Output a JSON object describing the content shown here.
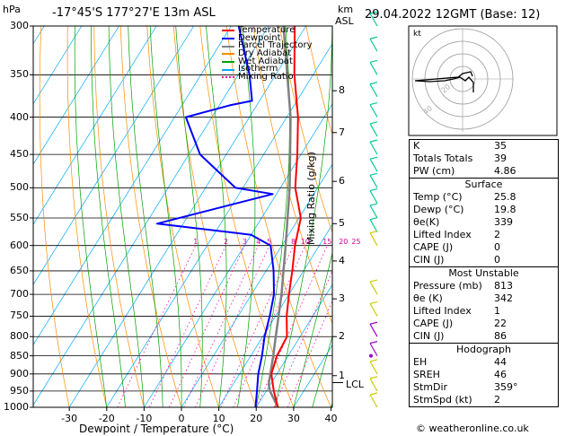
{
  "header": {
    "pressure_unit": "hPa",
    "location": "-17°45'S  177°27'E  13m  ASL",
    "km_unit": "km",
    "asl_unit": "ASL",
    "datetime": "29.04.2022  12GMT  (Base: 12)"
  },
  "legend": [
    {
      "label": "Temperature",
      "color": "#ff0000",
      "style": "solid"
    },
    {
      "label": "Dewpoint",
      "color": "#0000ff",
      "style": "solid"
    },
    {
      "label": "Parcel Trajectory",
      "color": "#808080",
      "style": "solid"
    },
    {
      "label": "Dry Adiabat",
      "color": "#ff8c00",
      "style": "solid"
    },
    {
      "label": "Wet Adiabat",
      "color": "#00a000",
      "style": "solid"
    },
    {
      "label": "Isotherm",
      "color": "#00aaff",
      "style": "solid"
    },
    {
      "label": "Mixing Ratio",
      "color": "#ff00aa",
      "style": "dotted"
    }
  ],
  "pressure_ticks": [
    "300",
    "350",
    "400",
    "450",
    "500",
    "550",
    "600",
    "650",
    "700",
    "750",
    "800",
    "850",
    "900",
    "950",
    "1000"
  ],
  "x_ticks": [
    "-30",
    "-20",
    "-10",
    "0",
    "10",
    "20",
    "30",
    "40"
  ],
  "xlabel": "Dewpoint / Temperature (°C)",
  "ylabel_right": "Mixing Ratio (g/kg)",
  "km_ticks": [
    "8",
    "7",
    "6",
    "5",
    "4",
    "3",
    "2",
    "1"
  ],
  "lcl_label": "LCL",
  "mixing_ratio_labels": [
    "1",
    "2",
    "3",
    "4",
    "5",
    "8",
    "10",
    "15",
    "20",
    "25"
  ],
  "hodograph": {
    "unit_label": "kt",
    "ring_labels": [
      "20",
      "40"
    ]
  },
  "indices": [
    {
      "label": "K",
      "value": "35"
    },
    {
      "label": "Totals Totals",
      "value": "39"
    },
    {
      "label": "PW (cm)",
      "value": "4.86"
    }
  ],
  "surface": {
    "title": "Surface",
    "rows": [
      {
        "label": "Temp (°C)",
        "value": "25.8"
      },
      {
        "label": "Dewp (°C)",
        "value": "19.8"
      },
      {
        "label": "θe(K)",
        "value": "339"
      },
      {
        "label": "Lifted Index",
        "value": "2"
      },
      {
        "label": "CAPE (J)",
        "value": "0"
      },
      {
        "label": "CIN (J)",
        "value": "0"
      }
    ]
  },
  "most_unstable": {
    "title": "Most Unstable",
    "rows": [
      {
        "label": "Pressure (mb)",
        "value": "813"
      },
      {
        "label": "θe (K)",
        "value": "342"
      },
      {
        "label": "Lifted Index",
        "value": "1"
      },
      {
        "label": "CAPE (J)",
        "value": "22"
      },
      {
        "label": "CIN (J)",
        "value": "86"
      }
    ]
  },
  "hodograph_table": {
    "title": "Hodograph",
    "rows": [
      {
        "label": "EH",
        "value": "44"
      },
      {
        "label": "SREH",
        "value": "46"
      },
      {
        "label": "StmDir",
        "value": "359°"
      },
      {
        "label": "StmSpd (kt)",
        "value": "2"
      }
    ]
  },
  "footer": "© weatheronline.co.uk",
  "chart_data": {
    "type": "skew-t",
    "y_scale": "log pressure",
    "ylim_hPa": [
      1000,
      300
    ],
    "xlim_C": [
      -35,
      40
    ],
    "temperature": {
      "name": "Temperature",
      "color": "#ff0000",
      "points": [
        {
          "p": 1000,
          "t": 25.8
        },
        {
          "p": 950,
          "t": 22.0
        },
        {
          "p": 900,
          "t": 18.5
        },
        {
          "p": 850,
          "t": 17.0
        },
        {
          "p": 800,
          "t": 16.5
        },
        {
          "p": 750,
          "t": 13.0
        },
        {
          "p": 700,
          "t": 10.0
        },
        {
          "p": 650,
          "t": 7.0
        },
        {
          "p": 600,
          "t": 3.5
        },
        {
          "p": 550,
          "t": 0.5
        },
        {
          "p": 500,
          "t": -6.0
        },
        {
          "p": 450,
          "t": -11.0
        },
        {
          "p": 400,
          "t": -17.0
        },
        {
          "p": 350,
          "t": -25.0
        },
        {
          "p": 300,
          "t": -33.0
        }
      ]
    },
    "dewpoint": {
      "name": "Dewpoint",
      "color": "#0000ff",
      "points": [
        {
          "p": 1000,
          "t": 19.8
        },
        {
          "p": 950,
          "t": 17.5
        },
        {
          "p": 900,
          "t": 15.0
        },
        {
          "p": 850,
          "t": 13.0
        },
        {
          "p": 800,
          "t": 10.5
        },
        {
          "p": 750,
          "t": 8.5
        },
        {
          "p": 700,
          "t": 6.0
        },
        {
          "p": 650,
          "t": 2.0
        },
        {
          "p": 600,
          "t": -3.0
        },
        {
          "p": 580,
          "t": -10.0
        },
        {
          "p": 560,
          "t": -37.0
        },
        {
          "p": 510,
          "t": -11.0
        },
        {
          "p": 500,
          "t": -22.0
        },
        {
          "p": 450,
          "t": -37.0
        },
        {
          "p": 400,
          "t": -47.0
        },
        {
          "p": 385,
          "t": -37.0
        },
        {
          "p": 380,
          "t": -32.0
        },
        {
          "p": 350,
          "t": -37.0
        },
        {
          "p": 300,
          "t": -48.0
        }
      ]
    },
    "parcel": {
      "name": "Parcel Trajectory",
      "color": "#808080",
      "points": [
        {
          "p": 1000,
          "t": 25.8
        },
        {
          "p": 950,
          "t": 21.0
        },
        {
          "p": 930,
          "t": 19.5
        },
        {
          "p": 850,
          "t": 16.0
        },
        {
          "p": 800,
          "t": 13.5
        },
        {
          "p": 700,
          "t": 8.0
        },
        {
          "p": 600,
          "t": 1.0
        },
        {
          "p": 500,
          "t": -7.5
        },
        {
          "p": 400,
          "t": -19.0
        },
        {
          "p": 300,
          "t": -36.0
        }
      ]
    },
    "mixing_ratios_gkg": [
      1,
      2,
      3,
      4,
      5,
      8,
      10,
      15,
      20,
      25
    ],
    "km_heights": [
      {
        "km": 8,
        "p": 368
      },
      {
        "km": 7,
        "p": 420
      },
      {
        "km": 6,
        "p": 490
      },
      {
        "km": 5,
        "p": 560
      },
      {
        "km": 4,
        "p": 630
      },
      {
        "km": 3,
        "p": 710
      },
      {
        "km": 2,
        "p": 800
      },
      {
        "km": 1,
        "p": 905
      }
    ],
    "lcl_p": 925,
    "wind_barbs_hPa": [
      300,
      325,
      350,
      375,
      400,
      425,
      450,
      475,
      500,
      525,
      550,
      575,
      600,
      700,
      750,
      800,
      850,
      900,
      950,
      1000
    ]
  }
}
